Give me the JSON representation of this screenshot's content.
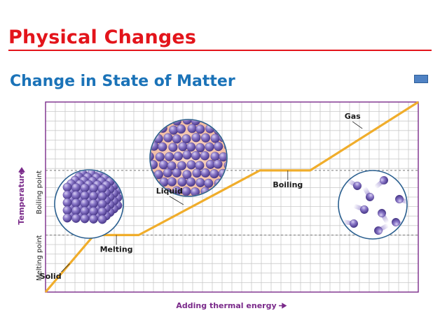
{
  "slide": {
    "title": "Physical Changes",
    "subtitle": "Change in State of Matter"
  },
  "colors": {
    "title": "#e3141b",
    "subtitle": "#1b73b8",
    "line": "#f0ad2b",
    "axis_label": "#7a2a8a",
    "grid": "#c9c9c9",
    "particle": "#8a77c8"
  },
  "chart_data": {
    "type": "line",
    "xlabel": "Adding thermal energy",
    "ylabel": "Temperature",
    "xlim": [
      0,
      10
    ],
    "ylim": [
      0,
      10
    ],
    "y_ticks": [
      {
        "label": "Melting point",
        "value": 3
      },
      {
        "label": "Boiling point",
        "value": 6.4
      }
    ],
    "grid": true,
    "series": [
      {
        "x": [
          0,
          1.3,
          2.5,
          5.75,
          7.1,
          10
        ],
        "y": [
          0,
          3,
          3,
          6.4,
          6.4,
          10
        ]
      }
    ],
    "annotations": [
      {
        "text": "Solid",
        "x": 0.65,
        "y": 1.5
      },
      {
        "text": "Melting",
        "x": 1.9,
        "y": 3
      },
      {
        "text": "Liquid",
        "x": 3.7,
        "y": 4.6
      },
      {
        "text": "Boiling",
        "x": 6.5,
        "y": 6.4
      },
      {
        "text": "Gas",
        "x": 8.5,
        "y": 8.6
      }
    ]
  },
  "illustrations": [
    {
      "name": "solid",
      "icon": "solid-particles-icon"
    },
    {
      "name": "liquid",
      "icon": "liquid-particles-icon"
    },
    {
      "name": "gas",
      "icon": "gas-particles-icon"
    }
  ]
}
